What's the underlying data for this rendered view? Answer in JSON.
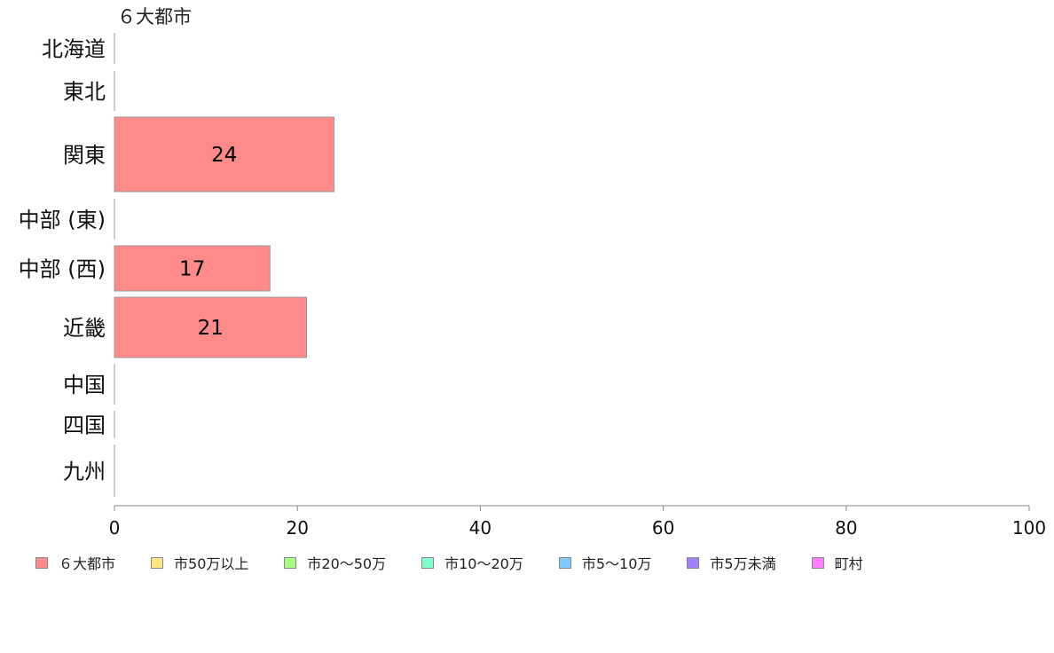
{
  "chart_data": {
    "type": "bar",
    "orientation": "horizontal",
    "categories": [
      "北海道",
      "東北",
      "関東",
      "中部 (東)",
      "中部 (西)",
      "近畿",
      "中国",
      "四国",
      "九州"
    ],
    "series": [
      {
        "name": "６大都市",
        "color": "#ff8a8a",
        "values": [
          0,
          0,
          24,
          0,
          17,
          21,
          0,
          0,
          0
        ]
      },
      {
        "name": "市50万以上",
        "color": "#ffe680",
        "values": [
          0,
          0,
          0,
          0,
          0,
          0,
          0,
          0,
          0
        ]
      },
      {
        "name": "市20〜50万",
        "color": "#a6ff80",
        "values": [
          0,
          0,
          0,
          0,
          0,
          0,
          0,
          0,
          0
        ]
      },
      {
        "name": "市10〜20万",
        "color": "#80ffcc",
        "values": [
          0,
          0,
          0,
          0,
          0,
          0,
          0,
          0,
          0
        ]
      },
      {
        "name": "市5〜10万",
        "color": "#80c8ff",
        "values": [
          0,
          0,
          0,
          0,
          0,
          0,
          0,
          0,
          0
        ]
      },
      {
        "name": "市5万未満",
        "color": "#a080ff",
        "values": [
          0,
          0,
          0,
          0,
          0,
          0,
          0,
          0,
          0
        ]
      },
      {
        "name": "町村",
        "color": "#ff80ff",
        "values": [
          0,
          0,
          0,
          0,
          0,
          0,
          0,
          0,
          0
        ]
      }
    ],
    "data_labels": [
      "",
      "",
      "24",
      "",
      "17",
      "21",
      "",
      "",
      ""
    ],
    "series_label": "６大都市",
    "xlim": [
      0,
      100
    ],
    "x_ticks": [
      "0",
      "20",
      "40",
      "60",
      "80",
      "100"
    ],
    "grid": false,
    "legend_position": "bottom"
  }
}
